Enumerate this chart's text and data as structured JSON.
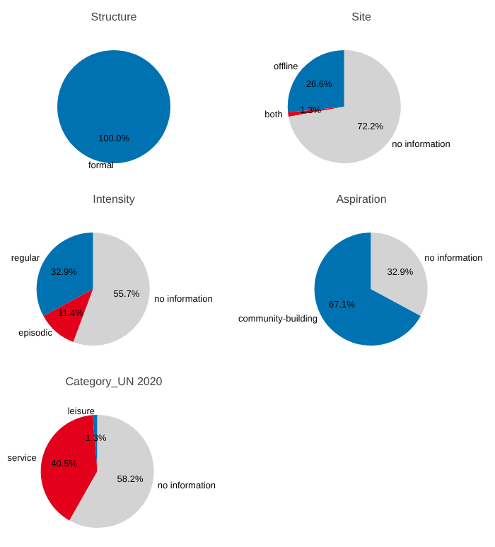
{
  "chart_data": [
    {
      "type": "pie",
      "title": "Structure",
      "categories": [
        "formal"
      ],
      "values": [
        100.0
      ],
      "colors": [
        "#0072b2"
      ],
      "value_labels": [
        "100.0%"
      ]
    },
    {
      "type": "pie",
      "title": "Site",
      "categories": [
        "offline",
        "both",
        "no information"
      ],
      "values": [
        26.6,
        1.3,
        72.2
      ],
      "colors": [
        "#0072b2",
        "#e3001b",
        "#d3d3d3"
      ],
      "value_labels": [
        "26.6%",
        "1.3%",
        "72.2%"
      ]
    },
    {
      "type": "pie",
      "title": "Intensity",
      "categories": [
        "regular",
        "episodic",
        "no information"
      ],
      "values": [
        32.9,
        11.4,
        55.7
      ],
      "colors": [
        "#0072b2",
        "#e3001b",
        "#d3d3d3"
      ],
      "value_labels": [
        "32.9%",
        "11.4%",
        "55.7%"
      ]
    },
    {
      "type": "pie",
      "title": "Aspiration",
      "categories": [
        "community-building",
        "no information"
      ],
      "values": [
        67.1,
        32.9
      ],
      "colors": [
        "#0072b2",
        "#d3d3d3"
      ],
      "value_labels": [
        "67.1%",
        "32.9%"
      ]
    },
    {
      "type": "pie",
      "title": "Category_UN 2020",
      "categories": [
        "leisure",
        "service",
        "no information"
      ],
      "values": [
        1.3,
        40.5,
        58.2
      ],
      "colors": [
        "#0072b2",
        "#e3001b",
        "#d3d3d3"
      ],
      "value_labels": [
        "1.3%",
        "40.5%",
        "58.2%"
      ]
    }
  ]
}
